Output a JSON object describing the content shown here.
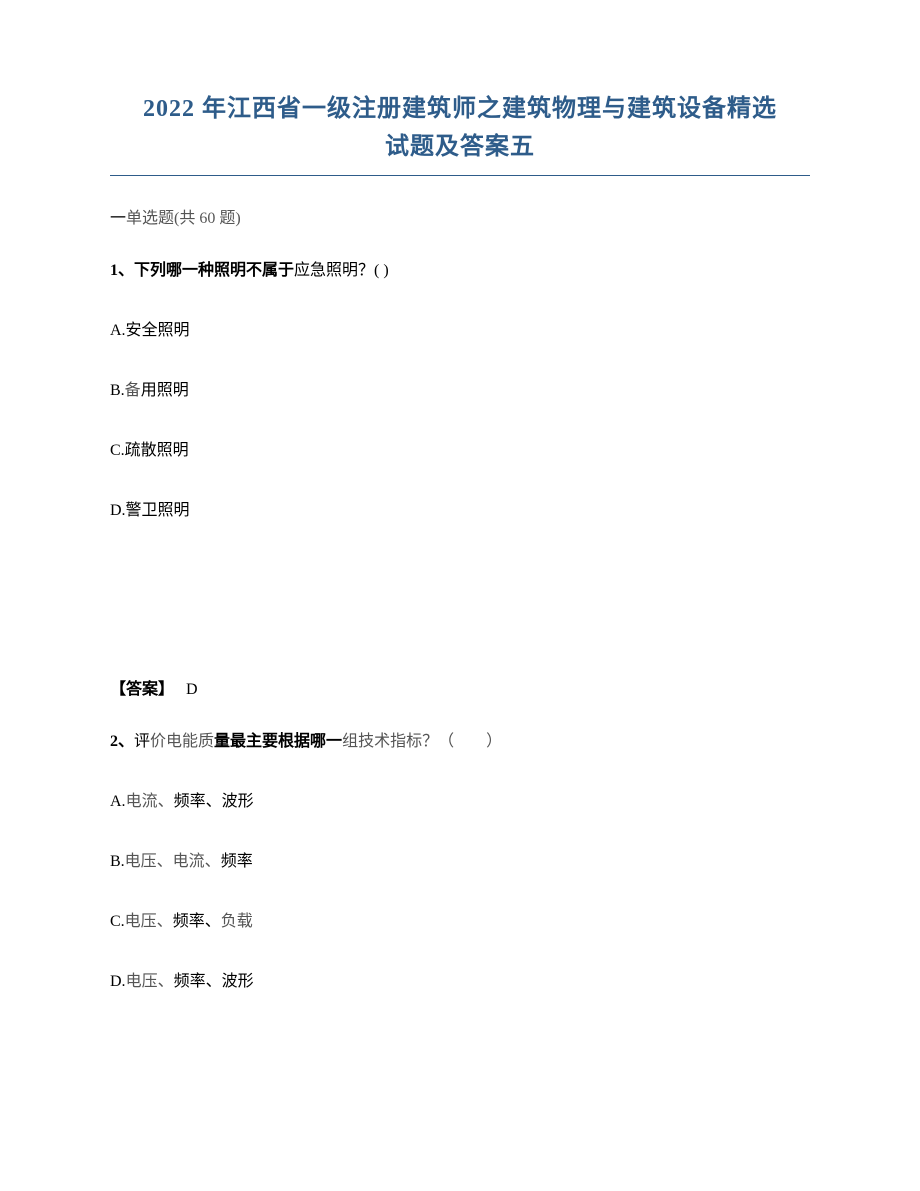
{
  "title": {
    "line1": "2022 年江西省一级注册建筑师之建筑物理与建筑设备精选",
    "line2": "试题及答案五",
    "color": "#2e5c8a",
    "underline_color": "#2e5c8a",
    "fontsize": 24
  },
  "section": {
    "heading_prefix": "一",
    "heading_text": "单选题(共 60 题)",
    "fontsize": 16
  },
  "q1": {
    "number": "1、",
    "stem_bold": "下列哪一种照明不属于",
    "stem_light": "应急照明？( )",
    "options": {
      "A": "A.安全照明",
      "B": "B.备用照明",
      "C": "C.疏散照明",
      "D": "D.警卫照明"
    },
    "answer_label": "【答案】",
    "answer_value": "D"
  },
  "q2": {
    "number": "2、",
    "stem_pre": "评",
    "stem_light1": "价电能质",
    "stem_bold2": "量最主要根据哪一",
    "stem_light2": "组技术指标？（　　）",
    "options": {
      "A": {
        "prefix": "A.",
        "light": "电流、",
        "bold": "频率、波形"
      },
      "B": {
        "prefix": "B.",
        "light1": "电压、电流、",
        "bold": "频率"
      },
      "C": {
        "prefix": "C.",
        "light1": "电压、",
        "bold1": "频率、",
        "light2": "负载"
      },
      "D": {
        "prefix": "D.",
        "light1": "电压、",
        "bold1": "频率、波形"
      }
    }
  },
  "colors": {
    "text": "#000000",
    "light_text": "#555555",
    "background": "#ffffff"
  }
}
